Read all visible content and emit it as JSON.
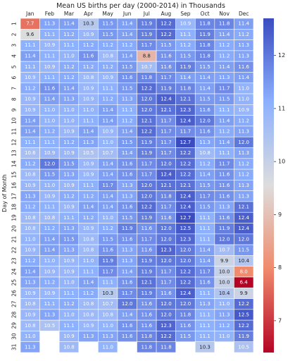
{
  "chart_data": {
    "type": "heatmap",
    "title": "Mean US births per day (2000-2014) in Thousands",
    "xlabel": "",
    "ylabel": "Day of Month",
    "x_categories": [
      "Jan",
      "Feb",
      "Mar",
      "Apr",
      "May",
      "Jun",
      "Jul",
      "Aug",
      "Sep",
      "Oct",
      "Nov",
      "Dec"
    ],
    "y_categories": [
      "1",
      "2",
      "3",
      "4",
      "5",
      "6",
      "7",
      "8",
      "9",
      "10",
      "11",
      "12",
      "13",
      "14",
      "15",
      "16",
      "17",
      "18",
      "19",
      "20",
      "21",
      "22",
      "23",
      "24",
      "25",
      "26",
      "27",
      "28",
      "29",
      "30",
      "31"
    ],
    "values": [
      [
        7.7,
        11.3,
        11.4,
        10.3,
        11.5,
        11.4,
        11.9,
        12.2,
        10.9,
        11.8,
        11.8,
        11.4
      ],
      [
        9.6,
        11.1,
        11.2,
        10.9,
        11.5,
        11.4,
        11.9,
        12.2,
        11.1,
        11.9,
        11.4,
        11.2
      ],
      [
        11.1,
        10.9,
        11.1,
        11.2,
        11.2,
        11.2,
        11.7,
        11.5,
        11.2,
        11.8,
        11.2,
        11.3
      ],
      [
        11.4,
        11.1,
        11.0,
        11.6,
        10.8,
        11.4,
        8.8,
        11.6,
        11.5,
        11.8,
        11.2,
        11.3
      ],
      [
        11.1,
        10.9,
        11.2,
        11.2,
        11.2,
        11.5,
        10.7,
        11.6,
        11.9,
        11.5,
        11.4,
        11.6
      ],
      [
        10.9,
        11.1,
        11.2,
        10.8,
        10.9,
        11.6,
        11.8,
        11.7,
        11.4,
        11.4,
        11.3,
        11.4
      ],
      [
        11.2,
        11.6,
        11.4,
        10.9,
        11.1,
        11.5,
        12.2,
        11.9,
        11.8,
        11.4,
        11.7,
        11.0
      ],
      [
        10.9,
        11.4,
        11.3,
        10.9,
        11.2,
        11.3,
        12.0,
        12.4,
        12.1,
        11.5,
        11.5,
        11.0
      ],
      [
        10.9,
        11.0,
        11.0,
        11.0,
        11.4,
        11.1,
        12.0,
        12.1,
        12.3,
        11.6,
        11.1,
        10.9
      ],
      [
        11.4,
        11.0,
        11.0,
        11.1,
        11.4,
        11.2,
        12.1,
        11.7,
        12.4,
        12.0,
        11.4,
        11.2
      ],
      [
        11.4,
        11.2,
        10.9,
        11.4,
        10.9,
        11.4,
        12.2,
        11.7,
        11.7,
        11.6,
        11.2,
        11.3
      ],
      [
        11.1,
        11.1,
        11.2,
        11.3,
        11.0,
        11.5,
        11.9,
        11.7,
        12.7,
        11.3,
        11.4,
        12.0
      ],
      [
        10.6,
        10.9,
        10.9,
        10.5,
        10.7,
        11.4,
        11.9,
        11.7,
        12.2,
        10.8,
        11.1,
        11.3
      ],
      [
        11.2,
        12.0,
        11.5,
        10.9,
        11.4,
        11.6,
        11.7,
        12.0,
        12.2,
        11.2,
        11.7,
        11.2
      ],
      [
        10.8,
        11.5,
        11.3,
        10.9,
        11.4,
        11.6,
        11.7,
        12.4,
        12.2,
        11.4,
        11.6,
        11.2
      ],
      [
        10.9,
        11.0,
        10.9,
        11.1,
        11.7,
        11.3,
        12.0,
        12.1,
        12.1,
        11.5,
        11.6,
        11.3
      ],
      [
        11.3,
        10.9,
        11.2,
        11.2,
        11.4,
        11.3,
        12.0,
        11.8,
        12.4,
        11.7,
        11.6,
        11.3
      ],
      [
        11.2,
        11.1,
        10.9,
        11.4,
        11.4,
        11.6,
        12.2,
        11.7,
        12.4,
        11.5,
        11.3,
        12.1
      ],
      [
        10.8,
        10.8,
        11.1,
        11.2,
        11.0,
        11.5,
        11.9,
        11.6,
        12.7,
        11.1,
        11.6,
        12.4
      ],
      [
        10.8,
        11.2,
        11.3,
        10.9,
        11.2,
        11.9,
        11.6,
        12.0,
        12.5,
        11.1,
        11.9,
        12.4
      ],
      [
        11.0,
        11.4,
        11.5,
        10.8,
        11.5,
        11.6,
        11.7,
        12.0,
        12.3,
        11.1,
        12.0,
        12.0
      ],
      [
        10.9,
        11.4,
        11.3,
        10.8,
        11.6,
        11.3,
        11.6,
        12.3,
        12.0,
        11.4,
        10.7,
        11.5
      ],
      [
        11.2,
        11.0,
        10.9,
        11.0,
        11.9,
        11.3,
        11.9,
        12.0,
        12.0,
        11.4,
        9.9,
        10.4
      ],
      [
        11.4,
        10.9,
        10.9,
        11.1,
        11.7,
        11.4,
        11.9,
        11.7,
        12.2,
        11.7,
        10.0,
        8.0
      ],
      [
        11.3,
        11.2,
        11.0,
        11.4,
        11.1,
        11.6,
        12.1,
        11.7,
        12.2,
        11.6,
        10.0,
        6.4
      ],
      [
        10.9,
        10.9,
        11.1,
        11.2,
        10.3,
        11.7,
        11.9,
        11.6,
        12.4,
        11.1,
        10.4,
        9.9
      ],
      [
        10.8,
        11.1,
        11.2,
        10.8,
        10.7,
        12.0,
        11.6,
        12.0,
        12.0,
        11.3,
        11.0,
        12.2
      ],
      [
        10.9,
        11.3,
        11.0,
        10.8,
        10.8,
        11.4,
        11.6,
        12.0,
        11.8,
        11.1,
        11.3,
        12.5
      ],
      [
        10.8,
        10.5,
        11.1,
        10.9,
        11.0,
        11.6,
        11.6,
        12.3,
        11.6,
        11.1,
        11.2,
        12.2
      ],
      [
        11.0,
        null,
        10.9,
        11.3,
        11.3,
        11.6,
        11.8,
        12.2,
        11.5,
        11.1,
        11.0,
        11.9
      ],
      [
        11.3,
        null,
        10.8,
        null,
        11.0,
        null,
        11.8,
        11.8,
        null,
        10.3,
        null,
        10.5
      ]
    ],
    "annotate": true,
    "colormap": "coolwarm",
    "vmin": 6.4,
    "vmax": 12.7,
    "colorbar_ticks": [
      7,
      8,
      9,
      10,
      11,
      12
    ],
    "grid": false,
    "colors": {
      "low": "#b40426",
      "mid": "#dddddd",
      "high": "#3b4cc0",
      "cell_border": "#ffffff"
    }
  }
}
